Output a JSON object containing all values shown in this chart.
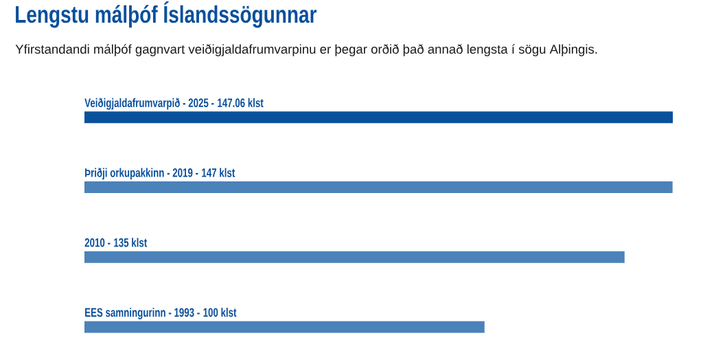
{
  "chart_data": {
    "type": "bar",
    "orientation": "horizontal",
    "title": "Lengstu málþóf Íslandssögunnar",
    "subtitle": "Yfirstandandi málþóf gagnvart veiðigjaldafrumvarpinu er þegar orðið það annað lengsta í sögu Alþingis.",
    "categories": [
      "Veiðigjaldafrumvarpið - 2025 -",
      "Þriðji orkupakkinn - 2019 -",
      "2010 -",
      "EES samningurinn - 1993 -"
    ],
    "values": [
      147.06,
      147,
      135,
      100
    ],
    "value_labels": [
      "147.06 klst",
      "147 klst",
      "135 klst",
      "100 klst"
    ],
    "colors": [
      "#0a519c",
      "#4b82b9",
      "#4b82b9",
      "#4b82b9"
    ],
    "tick_labels": "y"
  }
}
